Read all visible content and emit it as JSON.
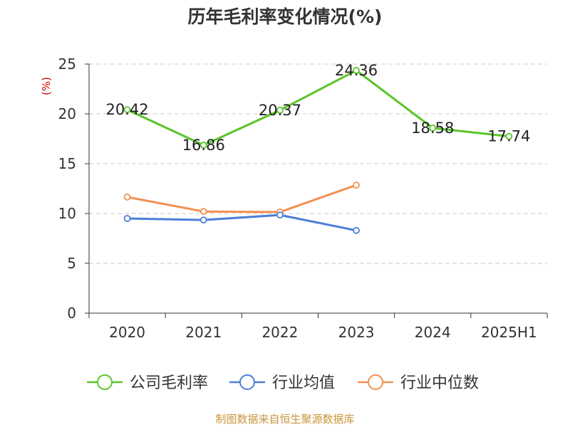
{
  "chart_data": {
    "type": "line",
    "title": "历年毛利率变化情况(%)",
    "ylabel": "(%)",
    "ylim": [
      0,
      25
    ],
    "yticks": [
      0,
      5,
      10,
      15,
      20,
      25
    ],
    "categories": [
      "2020",
      "2021",
      "2022",
      "2023",
      "2024",
      "2025H1"
    ],
    "grid": true,
    "legend_position": "bottom",
    "series": [
      {
        "name": "公司毛利率",
        "color": "#5ac52a",
        "values": [
          20.42,
          16.86,
          20.37,
          24.36,
          18.58,
          17.74
        ],
        "labels": [
          "20.42",
          "16.86",
          "20.37",
          "24.36",
          "18.58",
          "17.74"
        ]
      },
      {
        "name": "行业均值",
        "color": "#4a7fd8",
        "values": [
          9.5,
          9.35,
          9.85,
          8.3,
          null,
          null
        ]
      },
      {
        "name": "行业中位数",
        "color": "#f29052",
        "values": [
          11.65,
          10.2,
          10.15,
          12.85,
          null,
          null
        ]
      }
    ]
  },
  "footer": {
    "source": "制图数据来自恒生聚源数据库"
  }
}
